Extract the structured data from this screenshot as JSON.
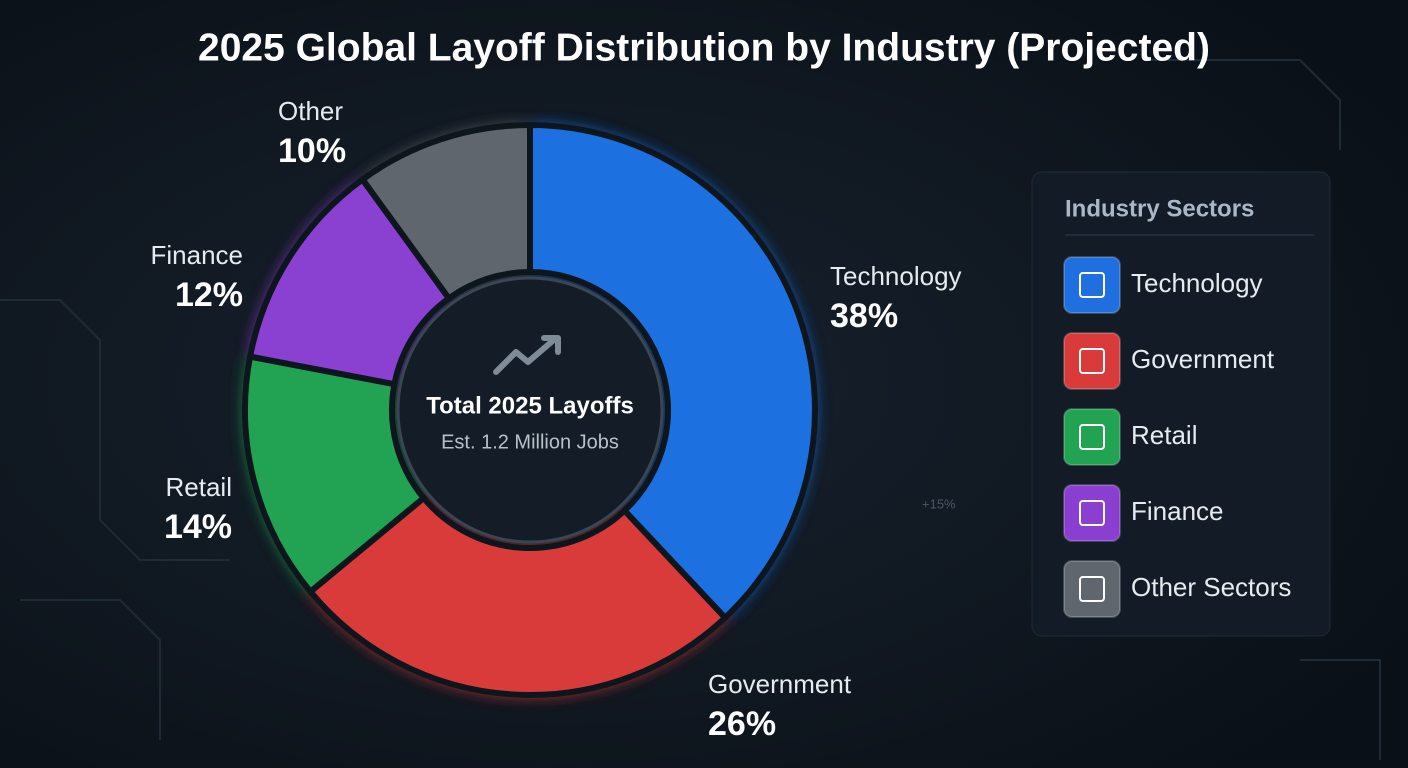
{
  "chart_data": {
    "type": "donut",
    "title": "2025 Global Layoff Distribution by Industry (Projected)",
    "center_title": "Total 2025 Layoffs",
    "center_subtitle": "Est. 1.2 Million Jobs",
    "categories": [
      "Technology",
      "Government",
      "Retail",
      "Finance",
      "Other"
    ],
    "values": [
      38,
      26,
      14,
      12,
      10
    ],
    "value_labels": [
      "38%",
      "26%",
      "14%",
      "12%",
      "10%"
    ],
    "colors": [
      "#1f6fe0",
      "#d93a3a",
      "#21a352",
      "#8a3fd1",
      "#5f666e"
    ],
    "legend": {
      "title": "Industry Sectors",
      "labels": [
        "Technology",
        "Government",
        "Retail",
        "Finance",
        "Other Sectors"
      ]
    },
    "annotations": [
      "+15%"
    ]
  }
}
